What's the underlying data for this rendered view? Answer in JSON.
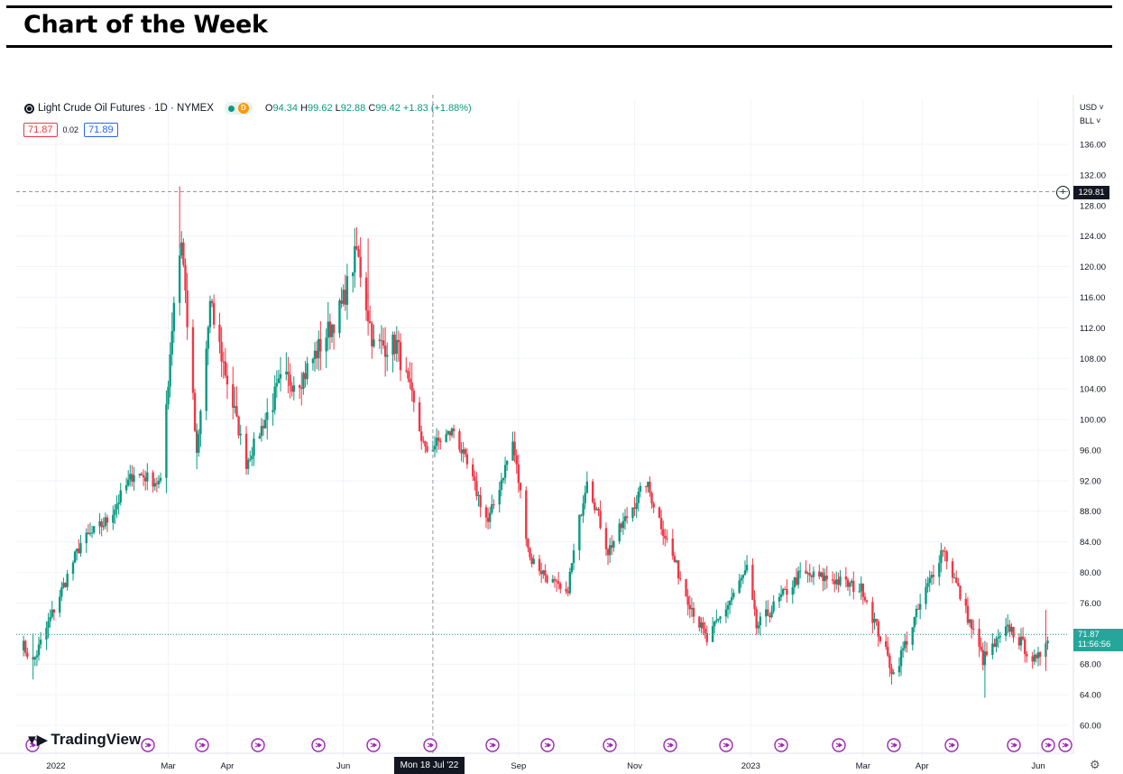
{
  "page": {
    "title": "Chart of the Week"
  },
  "legend": {
    "symbol": "Light Crude Oil Futures · 1D · NYMEX",
    "delayed_badge": "D",
    "open_key": "O",
    "open": "94.34",
    "high_key": "H",
    "high": "99.62",
    "low_key": "L",
    "low": "92.88",
    "close_key": "C",
    "close": "99.42",
    "change": "+1.83 (+1.88%)",
    "bid": "71.87",
    "spread": "0.02",
    "ask": "71.89"
  },
  "axis": {
    "currency": "USD ˅",
    "unit": "BLL ˅",
    "last_price": "71.87",
    "countdown": "11:56:56",
    "crosshair_price": "129.81",
    "crosshair_date": "Mon 18 Jul '22"
  },
  "branding": {
    "logo_text": "TradingView"
  },
  "colors": {
    "up": "#089981",
    "down": "#f23645",
    "grid": "#f0f3fa",
    "crosshair": "#9598a1",
    "event": "#9c27b0"
  },
  "chart_data": {
    "type": "candlestick",
    "title": "Light Crude Oil Futures · 1D · NYMEX",
    "xlabel": "",
    "ylabel": "",
    "ylim": [
      60,
      137
    ],
    "yticks": [
      "136.00",
      "132.00",
      "128.00",
      "124.00",
      "120.00",
      "116.00",
      "112.00",
      "108.00",
      "104.00",
      "100.00",
      "96.00",
      "92.00",
      "88.00",
      "84.00",
      "80.00",
      "76.00",
      "72.00",
      "68.00",
      "64.00",
      "60.00"
    ],
    "xticks": [
      {
        "label": "2022",
        "date": "2022-01-01"
      },
      {
        "label": "Mar",
        "date": "2022-03-01"
      },
      {
        "label": "Apr",
        "date": "2022-04-01"
      },
      {
        "label": "Jun",
        "date": "2022-06-01"
      },
      {
        "label": "Sep",
        "date": "2022-09-01"
      },
      {
        "label": "Nov",
        "date": "2022-11-01"
      },
      {
        "label": "2023",
        "date": "2023-01-01"
      },
      {
        "label": "Mar",
        "date": "2023-03-01"
      },
      {
        "label": "Apr",
        "date": "2023-04-01"
      },
      {
        "label": "Jun",
        "date": "2023-06-01"
      }
    ],
    "grid": true,
    "crosshair": {
      "date": "2022-07-18",
      "price": 129.81
    },
    "last_price": 71.87,
    "close_path": [
      {
        "date": "2021-12-14",
        "close": 70.7
      },
      {
        "date": "2021-12-20",
        "close": 68.2
      },
      {
        "date": "2021-12-31",
        "close": 75.2
      },
      {
        "date": "2022-01-14",
        "close": 83.8
      },
      {
        "date": "2022-01-28",
        "close": 86.8
      },
      {
        "date": "2022-02-11",
        "close": 93.1
      },
      {
        "date": "2022-02-25",
        "close": 91.6
      },
      {
        "date": "2022-03-04",
        "close": 115.7
      },
      {
        "date": "2022-03-08",
        "close": 123.7
      },
      {
        "date": "2022-03-16",
        "close": 95.0
      },
      {
        "date": "2022-03-23",
        "close": 114.9
      },
      {
        "date": "2022-04-11",
        "close": 94.3
      },
      {
        "date": "2022-04-29",
        "close": 104.7
      },
      {
        "date": "2022-05-11",
        "close": 105.7
      },
      {
        "date": "2022-05-31",
        "close": 114.7
      },
      {
        "date": "2022-06-08",
        "close": 122.1
      },
      {
        "date": "2022-06-17",
        "close": 109.6
      },
      {
        "date": "2022-06-29",
        "close": 109.8
      },
      {
        "date": "2022-07-14",
        "close": 95.8
      },
      {
        "date": "2022-07-29",
        "close": 98.6
      },
      {
        "date": "2022-08-16",
        "close": 86.5
      },
      {
        "date": "2022-08-29",
        "close": 97.0
      },
      {
        "date": "2022-09-07",
        "close": 81.9
      },
      {
        "date": "2022-09-26",
        "close": 76.7
      },
      {
        "date": "2022-10-07",
        "close": 92.6
      },
      {
        "date": "2022-10-18",
        "close": 82.8
      },
      {
        "date": "2022-11-07",
        "close": 91.8
      },
      {
        "date": "2022-11-28",
        "close": 77.2
      },
      {
        "date": "2022-12-09",
        "close": 71.0
      },
      {
        "date": "2022-12-30",
        "close": 80.3
      },
      {
        "date": "2023-01-04",
        "close": 72.8
      },
      {
        "date": "2023-01-27",
        "close": 79.7
      },
      {
        "date": "2023-02-13",
        "close": 79.1
      },
      {
        "date": "2023-03-01",
        "close": 77.7
      },
      {
        "date": "2023-03-17",
        "close": 66.7
      },
      {
        "date": "2023-03-31",
        "close": 75.7
      },
      {
        "date": "2023-04-12",
        "close": 83.3
      },
      {
        "date": "2023-05-03",
        "close": 68.6
      },
      {
        "date": "2023-05-17",
        "close": 72.8
      },
      {
        "date": "2023-05-31",
        "close": 68.1
      },
      {
        "date": "2023-06-06",
        "close": 71.9
      }
    ],
    "spikes": [
      {
        "date": "2022-03-07",
        "high": 130.5
      },
      {
        "date": "2022-03-16",
        "low": 93.5
      },
      {
        "date": "2022-06-14",
        "high": 123.7
      },
      {
        "date": "2021-12-20",
        "low": 66.0
      },
      {
        "date": "2023-05-04",
        "low": 63.6
      },
      {
        "date": "2023-06-05",
        "high": 75.1
      }
    ]
  }
}
